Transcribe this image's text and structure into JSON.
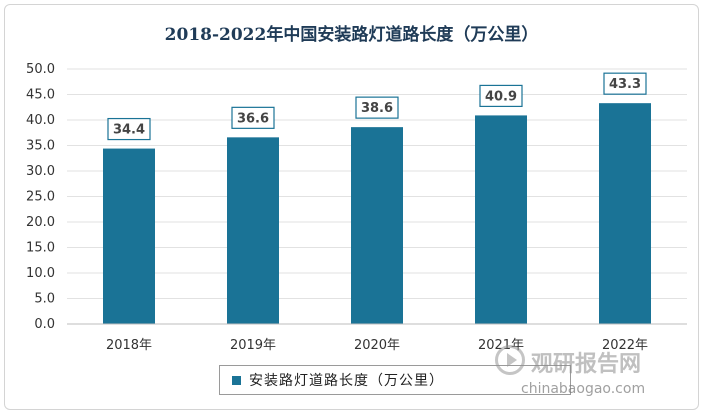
{
  "chart_data": {
    "type": "bar",
    "title": "2018-2022年中国安装路灯道路长度（万公里）",
    "categories": [
      "2018年",
      "2019年",
      "2020年",
      "2021年",
      "2022年"
    ],
    "series": [
      {
        "name": "安装路灯道路长度（万公里）",
        "values": [
          34.4,
          36.6,
          38.6,
          40.9,
          43.3
        ]
      }
    ],
    "data_labels": [
      "34.4",
      "36.6",
      "38.6",
      "40.9",
      "43.3"
    ],
    "y_ticks": [
      "0.0",
      "5.0",
      "10.0",
      "15.0",
      "20.0",
      "25.0",
      "30.0",
      "35.0",
      "40.0",
      "45.0",
      "50.0"
    ],
    "ylim": [
      0,
      50
    ],
    "xlabel": "",
    "ylabel": "",
    "grid": true,
    "legend_position": "bottom",
    "bar_color": "#1a7396"
  },
  "watermark": {
    "name": "观研报告网",
    "sub": "chinabaogao.com"
  }
}
